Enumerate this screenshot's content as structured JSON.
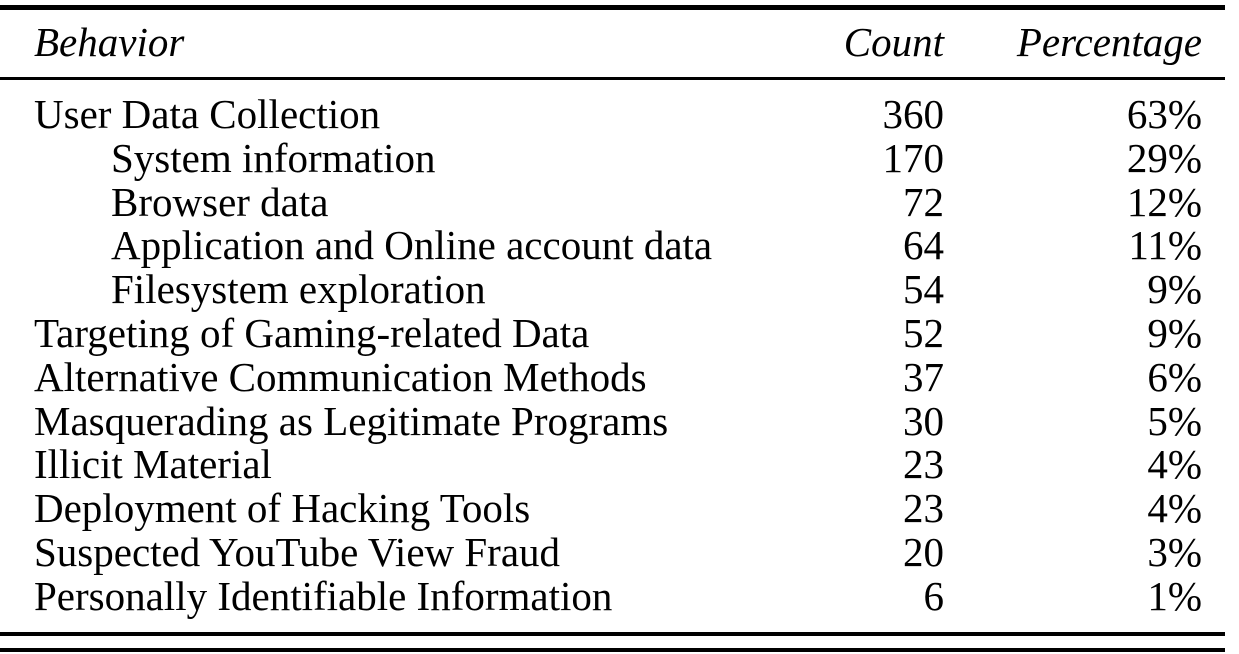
{
  "table": {
    "headers": {
      "behavior": "Behavior",
      "count": "Count",
      "percentage": "Percentage"
    },
    "rows": [
      {
        "behavior": "User Data Collection",
        "count": "360",
        "percentage": "63%",
        "indent": false
      },
      {
        "behavior": "System information",
        "count": "170",
        "percentage": "29%",
        "indent": true
      },
      {
        "behavior": "Browser data",
        "count": "72",
        "percentage": "12%",
        "indent": true
      },
      {
        "behavior": "Application and Online account data",
        "count": "64",
        "percentage": "11%",
        "indent": true
      },
      {
        "behavior": "Filesystem exploration",
        "count": "54",
        "percentage": "9%",
        "indent": true
      },
      {
        "behavior": "Targeting of Gaming-related Data",
        "count": "52",
        "percentage": "9%",
        "indent": false
      },
      {
        "behavior": "Alternative Communication Methods",
        "count": "37",
        "percentage": "6%",
        "indent": false
      },
      {
        "behavior": "Masquerading as Legitimate Programs",
        "count": "30",
        "percentage": "5%",
        "indent": false
      },
      {
        "behavior": "Illicit Material",
        "count": "23",
        "percentage": "4%",
        "indent": false
      },
      {
        "behavior": "Deployment of Hacking Tools",
        "count": "23",
        "percentage": "4%",
        "indent": false
      },
      {
        "behavior": "Suspected YouTube View Fraud",
        "count": "20",
        "percentage": "3%",
        "indent": false
      },
      {
        "behavior": "Personally Identifiable Information",
        "count": "6",
        "percentage": "1%",
        "indent": false
      }
    ]
  }
}
